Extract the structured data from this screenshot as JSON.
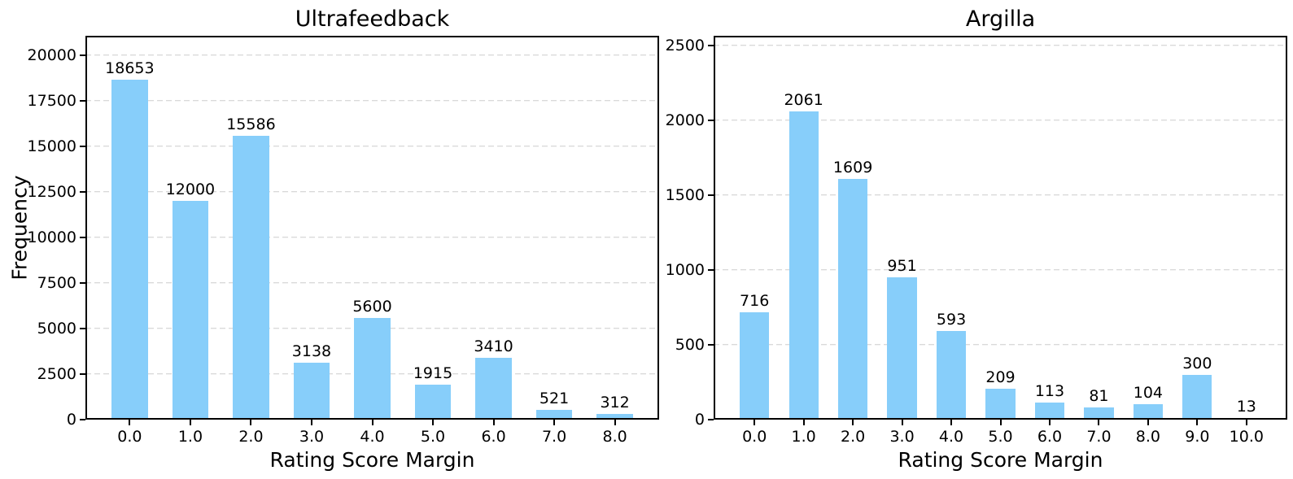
{
  "figure": {
    "background": "#ffffff",
    "bar_color": "#87CEFA",
    "grid_color": "#cccccc",
    "axis_color": "#000000",
    "text_color": "#000000"
  },
  "chart_data": [
    {
      "type": "bar",
      "title": "Ultrafeedback",
      "xlabel": "Rating Score Margin",
      "ylabel": "Frequency",
      "categories": [
        "0.0",
        "1.0",
        "2.0",
        "3.0",
        "4.0",
        "5.0",
        "6.0",
        "7.0",
        "8.0"
      ],
      "values": [
        18653,
        12000,
        15586,
        3138,
        5600,
        1915,
        3410,
        521,
        312
      ],
      "yticks": [
        0,
        2500,
        5000,
        7500,
        10000,
        12500,
        15000,
        17500,
        20000
      ],
      "ylim": [
        0,
        21070
      ],
      "bar_width_frac": 0.6,
      "grid": "dashed-horizontal",
      "legend": "none",
      "annotations": "value-above-each-bar"
    },
    {
      "type": "bar",
      "title": "Argilla",
      "xlabel": "Rating Score Margin",
      "ylabel": "",
      "categories": [
        "0.0",
        "1.0",
        "2.0",
        "3.0",
        "4.0",
        "5.0",
        "6.0",
        "7.0",
        "8.0",
        "9.0",
        "10.0"
      ],
      "values": [
        716,
        2061,
        1609,
        951,
        593,
        209,
        113,
        81,
        104,
        300,
        13
      ],
      "yticks": [
        0,
        500,
        1000,
        1500,
        2000,
        2500
      ],
      "ylim": [
        0,
        2565
      ],
      "bar_width_frac": 0.6,
      "grid": "dashed-horizontal",
      "legend": "none",
      "annotations": "value-above-each-bar"
    }
  ]
}
